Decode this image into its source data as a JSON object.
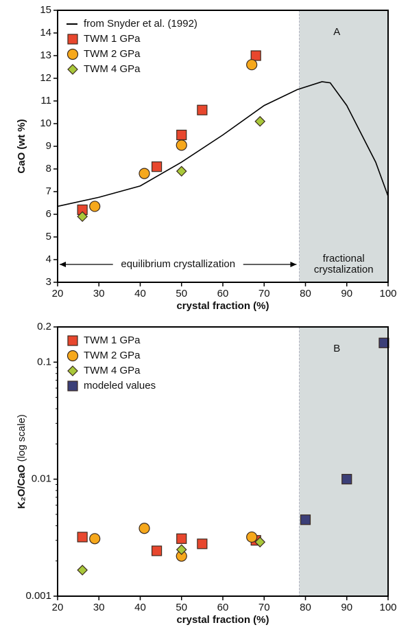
{
  "chart_data": [
    {
      "type": "scatter",
      "panel_label": "A",
      "x_label": "crystal fraction (%)",
      "y_label": "CaO (wt %)",
      "xlim": [
        20,
        100
      ],
      "xticks": [
        20,
        30,
        40,
        50,
        60,
        70,
        80,
        90,
        100
      ],
      "ylim": [
        3,
        15
      ],
      "yticks": [
        3,
        4,
        5,
        6,
        7,
        8,
        9,
        10,
        11,
        12,
        13,
        14,
        15
      ],
      "log_y": false,
      "shade_xlim": [
        78.5,
        100
      ],
      "shade_color": "#d6dcdc",
      "annotations": [
        "equilibrium crystallization",
        "fractional",
        "crystalization"
      ],
      "series": [
        {
          "name": "from Snyder et al. (1992)",
          "marker": "line",
          "color": "#000000",
          "x": [
            20,
            30,
            40,
            50,
            60,
            70,
            78,
            84,
            86,
            90,
            97,
            100
          ],
          "values": [
            6.35,
            6.75,
            7.25,
            8.3,
            9.5,
            10.8,
            11.5,
            11.85,
            11.8,
            10.8,
            8.3,
            6.8
          ]
        },
        {
          "name": "TWM 1 GPa",
          "marker": "square",
          "color": "#e8472e",
          "x": [
            26,
            44,
            50,
            55,
            68
          ],
          "values": [
            6.2,
            8.1,
            9.5,
            10.6,
            13.0
          ]
        },
        {
          "name": "TWM 2 GPa",
          "marker": "circle",
          "color": "#f6a81c",
          "x": [
            29,
            41,
            50,
            67
          ],
          "values": [
            6.35,
            7.8,
            9.05,
            12.6
          ]
        },
        {
          "name": "TWM 4 GPa",
          "marker": "diamond",
          "color": "#a9c83a",
          "x": [
            26,
            50,
            69
          ],
          "values": [
            5.9,
            7.9,
            10.1
          ]
        }
      ]
    },
    {
      "type": "scatter",
      "panel_label": "B",
      "x_label": "crystal fraction (%)",
      "y_label": "K₂O/CaO",
      "y_label_note": "(log scale)",
      "xlim": [
        20,
        100
      ],
      "xticks": [
        20,
        30,
        40,
        50,
        60,
        70,
        80,
        90,
        100
      ],
      "ylim": [
        0.001,
        0.2
      ],
      "yticks": [
        0.001,
        0.01,
        0.1,
        0.2
      ],
      "log_y": true,
      "shade_xlim": [
        78.5,
        100
      ],
      "shade_color": "#d6dcdc",
      "series": [
        {
          "name": "TWM 1 GPa",
          "marker": "square",
          "color": "#e8472e",
          "x": [
            26,
            44,
            50,
            55,
            68
          ],
          "values": [
            0.0032,
            0.00244,
            0.0031,
            0.0028,
            0.003
          ]
        },
        {
          "name": "TWM 2 GPa",
          "marker": "circle",
          "color": "#f6a81c",
          "x": [
            29,
            41,
            50,
            67
          ],
          "values": [
            0.0031,
            0.0038,
            0.0022,
            0.0032
          ]
        },
        {
          "name": "TWM 4 GPa",
          "marker": "diamond",
          "color": "#a9c83a",
          "x": [
            26,
            50,
            69
          ],
          "values": [
            0.00167,
            0.0025,
            0.0029
          ]
        },
        {
          "name": "modeled values",
          "marker": "square",
          "color": "#3b3f78",
          "x": [
            80,
            90,
            99
          ],
          "values": [
            0.0045,
            0.01,
            0.146
          ]
        }
      ]
    }
  ]
}
